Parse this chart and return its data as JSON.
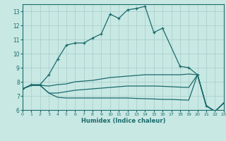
{
  "xlabel": "Humidex (Indice chaleur)",
  "xlim": [
    0,
    23
  ],
  "ylim": [
    6,
    13.5
  ],
  "yticks": [
    6,
    7,
    8,
    9,
    10,
    11,
    12,
    13
  ],
  "xticks": [
    0,
    1,
    2,
    3,
    4,
    5,
    6,
    7,
    8,
    9,
    10,
    11,
    12,
    13,
    14,
    15,
    16,
    17,
    18,
    19,
    20,
    21,
    22,
    23
  ],
  "bg_color": "#c8e8e4",
  "line_color": "#1a6b6b",
  "grid_color": "#a8ccc8",
  "lines": [
    {
      "x": [
        0,
        1,
        2,
        3,
        4,
        5,
        6,
        7,
        8,
        9,
        10,
        11,
        12,
        13,
        14,
        15,
        16,
        18,
        19,
        20,
        21,
        22,
        23
      ],
      "y": [
        7.5,
        7.8,
        7.8,
        8.5,
        9.6,
        10.6,
        10.75,
        10.75,
        11.1,
        11.4,
        12.8,
        12.5,
        13.1,
        13.2,
        13.35,
        11.5,
        11.8,
        9.1,
        9.0,
        8.5,
        6.3,
        5.9,
        6.5
      ],
      "has_markers": true
    },
    {
      "x": [
        0,
        1,
        2,
        3,
        4,
        5,
        6,
        7,
        8,
        9,
        10,
        11,
        12,
        13,
        14,
        15,
        16,
        17,
        18,
        19,
        20,
        21,
        22,
        23
      ],
      "y": [
        7.5,
        7.75,
        7.75,
        7.7,
        7.8,
        7.85,
        8.0,
        8.05,
        8.1,
        8.2,
        8.3,
        8.35,
        8.4,
        8.45,
        8.5,
        8.5,
        8.5,
        8.5,
        8.5,
        8.55,
        8.5,
        6.3,
        5.9,
        6.5
      ],
      "has_markers": false
    },
    {
      "x": [
        0,
        1,
        2,
        3,
        4,
        5,
        6,
        7,
        8,
        9,
        10,
        11,
        12,
        13,
        14,
        15,
        16,
        17,
        18,
        19,
        20,
        21,
        22,
        23
      ],
      "y": [
        7.5,
        7.75,
        7.75,
        7.2,
        7.2,
        7.3,
        7.4,
        7.45,
        7.5,
        7.55,
        7.6,
        7.65,
        7.7,
        7.7,
        7.7,
        7.7,
        7.68,
        7.65,
        7.62,
        7.6,
        8.5,
        6.3,
        5.9,
        6.5
      ],
      "has_markers": false
    },
    {
      "x": [
        0,
        1,
        2,
        3,
        4,
        5,
        6,
        7,
        8,
        9,
        10,
        11,
        12,
        13,
        14,
        15,
        16,
        17,
        18,
        19,
        20,
        21,
        22,
        23
      ],
      "y": [
        7.5,
        7.75,
        7.75,
        7.2,
        6.9,
        6.85,
        6.85,
        6.85,
        6.85,
        6.85,
        6.85,
        6.85,
        6.85,
        6.82,
        6.8,
        6.78,
        6.75,
        6.75,
        6.72,
        6.7,
        8.5,
        6.3,
        5.9,
        6.5
      ],
      "has_markers": false
    }
  ]
}
